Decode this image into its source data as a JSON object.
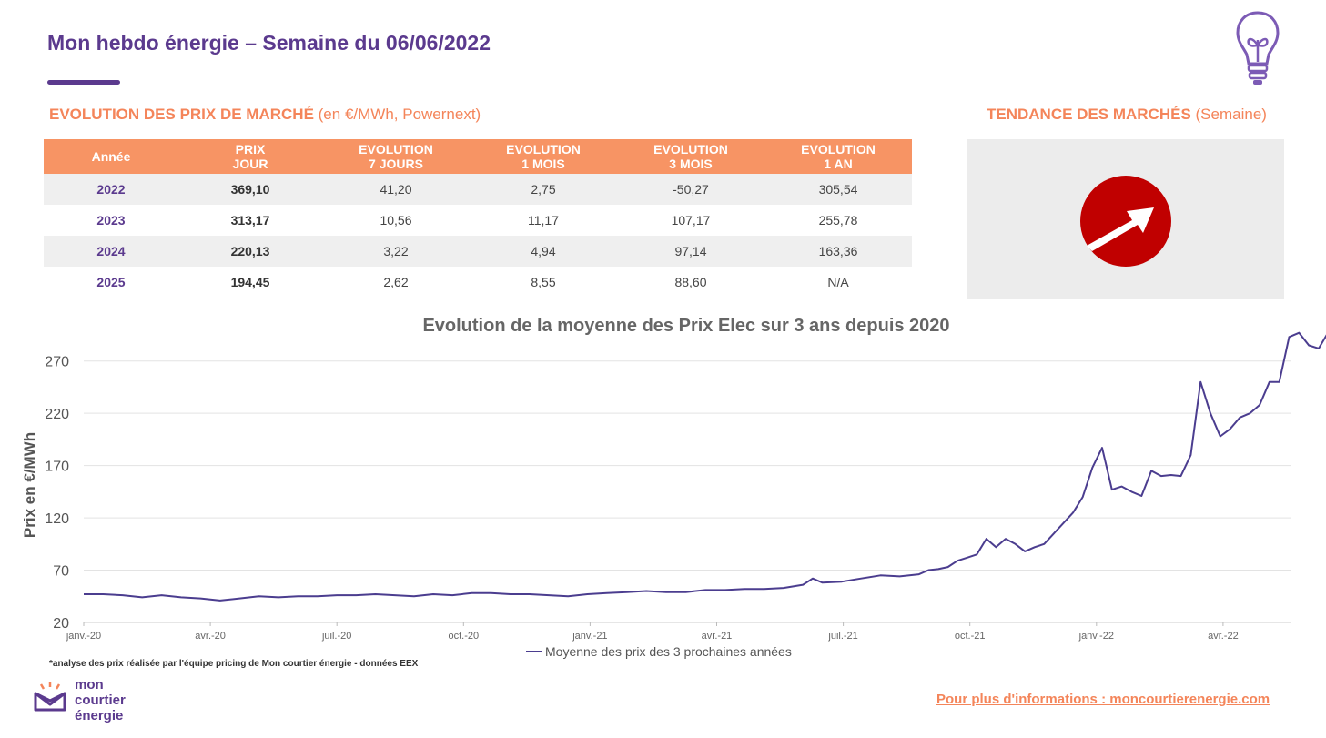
{
  "header": {
    "title": "Mon hebdo énergie – Semaine du 06/06/2022"
  },
  "market_prices": {
    "section_title": "EVOLUTION DES PRIX DE MARCHÉ",
    "section_subtitle": " (en €/MWh, Powernext)",
    "columns": [
      "Année",
      "PRIX\nJOUR",
      "EVOLUTION\n7 JOURS",
      "EVOLUTION\n1 MOIS",
      "EVOLUTION\n3 MOIS",
      "EVOLUTION\n1 AN"
    ],
    "rows": [
      [
        "2022",
        "369,10",
        "41,20",
        "2,75",
        "-50,27",
        "305,54"
      ],
      [
        "2023",
        "313,17",
        "10,56",
        "11,17",
        "107,17",
        "255,78"
      ],
      [
        "2024",
        "220,13",
        "3,22",
        "4,94",
        "97,14",
        "163,36"
      ],
      [
        "2025",
        "194,45",
        "2,62",
        "8,55",
        "88,60",
        "N/A"
      ]
    ]
  },
  "trend": {
    "section_title": "TENDANCE DES MARCHÉS",
    "section_subtitle": " (Semaine)",
    "direction_icon": "arrow-up-right-icon",
    "icon_color": "#c00000"
  },
  "colors": {
    "brand_purple": "#5b3a8e",
    "accent_orange": "#f4855a",
    "table_header": "#f79464",
    "series_line": "#4b3d8f"
  },
  "chart_data": {
    "type": "line",
    "title": "Evolution de la moyenne des Prix Elec sur 3 ans depuis 2020",
    "ylabel": "Prix en €/MWh",
    "xlabel": "",
    "ylim": [
      20,
      295
    ],
    "yticks": [
      20,
      70,
      120,
      170,
      220,
      270
    ],
    "grid": true,
    "legend": "bottom",
    "tick_labels": [
      "janv.-20",
      "avr.-20",
      "juil.-20",
      "oct.-20",
      "janv.-21",
      "avr.-21",
      "juil.-21",
      "oct.-21",
      "janv.-22",
      "avr.-22"
    ],
    "tick_dates": [
      "2020-01-01",
      "2020-04-01",
      "2020-07-01",
      "2020-10-01",
      "2021-01-01",
      "2021-04-01",
      "2021-07-01",
      "2021-10-01",
      "2022-01-01",
      "2022-04-01"
    ],
    "series": [
      {
        "name": "Moyenne des prix des 3 prochaines années",
        "color": "#4b3d8f",
        "points": [
          [
            "2020-01-01",
            47
          ],
          [
            "2020-01-15",
            47
          ],
          [
            "2020-01-29",
            46
          ],
          [
            "2020-02-12",
            44
          ],
          [
            "2020-02-26",
            46
          ],
          [
            "2020-03-11",
            44
          ],
          [
            "2020-03-25",
            43
          ],
          [
            "2020-04-08",
            41
          ],
          [
            "2020-04-22",
            43
          ],
          [
            "2020-05-06",
            45
          ],
          [
            "2020-05-20",
            44
          ],
          [
            "2020-06-03",
            45
          ],
          [
            "2020-06-17",
            45
          ],
          [
            "2020-07-01",
            46
          ],
          [
            "2020-07-15",
            46
          ],
          [
            "2020-07-29",
            47
          ],
          [
            "2020-08-12",
            46
          ],
          [
            "2020-08-26",
            45
          ],
          [
            "2020-09-09",
            47
          ],
          [
            "2020-09-23",
            46
          ],
          [
            "2020-10-07",
            48
          ],
          [
            "2020-10-21",
            48
          ],
          [
            "2020-11-04",
            47
          ],
          [
            "2020-11-18",
            47
          ],
          [
            "2020-12-02",
            46
          ],
          [
            "2020-12-16",
            45
          ],
          [
            "2020-12-30",
            47
          ],
          [
            "2021-01-13",
            48
          ],
          [
            "2021-01-27",
            49
          ],
          [
            "2021-02-10",
            50
          ],
          [
            "2021-02-24",
            49
          ],
          [
            "2021-03-10",
            49
          ],
          [
            "2021-03-24",
            51
          ],
          [
            "2021-04-07",
            51
          ],
          [
            "2021-04-21",
            52
          ],
          [
            "2021-05-05",
            52
          ],
          [
            "2021-05-19",
            53
          ],
          [
            "2021-06-02",
            56
          ],
          [
            "2021-06-09",
            62
          ],
          [
            "2021-06-16",
            58
          ],
          [
            "2021-06-30",
            59
          ],
          [
            "2021-07-14",
            62
          ],
          [
            "2021-07-28",
            65
          ],
          [
            "2021-08-11",
            64
          ],
          [
            "2021-08-25",
            66
          ],
          [
            "2021-09-01",
            70
          ],
          [
            "2021-09-08",
            71
          ],
          [
            "2021-09-15",
            73
          ],
          [
            "2021-09-22",
            79
          ],
          [
            "2021-09-29",
            82
          ],
          [
            "2021-10-06",
            85
          ],
          [
            "2021-10-13",
            100
          ],
          [
            "2021-10-20",
            92
          ],
          [
            "2021-10-27",
            100
          ],
          [
            "2021-11-03",
            95
          ],
          [
            "2021-11-10",
            88
          ],
          [
            "2021-11-17",
            92
          ],
          [
            "2021-11-24",
            95
          ],
          [
            "2021-12-01",
            105
          ],
          [
            "2021-12-08",
            115
          ],
          [
            "2021-12-15",
            125
          ],
          [
            "2021-12-22",
            140
          ],
          [
            "2021-12-29",
            168
          ],
          [
            "2022-01-05",
            187
          ],
          [
            "2022-01-12",
            147
          ],
          [
            "2022-01-19",
            150
          ],
          [
            "2022-01-26",
            145
          ],
          [
            "2022-02-02",
            141
          ],
          [
            "2022-02-09",
            165
          ],
          [
            "2022-02-16",
            160
          ],
          [
            "2022-02-23",
            161
          ],
          [
            "2022-03-02",
            160
          ],
          [
            "2022-03-09",
            180
          ],
          [
            "2022-03-16",
            250
          ],
          [
            "2022-03-23",
            220
          ],
          [
            "2022-03-30",
            198
          ],
          [
            "2022-04-06",
            205
          ],
          [
            "2022-04-13",
            216
          ],
          [
            "2022-04-20",
            220
          ],
          [
            "2022-04-27",
            228
          ],
          [
            "2022-05-04",
            250
          ],
          [
            "2022-05-11",
            250
          ],
          [
            "2022-05-18",
            293
          ],
          [
            "2022-05-25",
            297
          ],
          [
            "2022-06-01",
            285
          ],
          [
            "2022-06-08",
            282
          ],
          [
            "2022-06-15",
            298
          ]
        ]
      }
    ]
  },
  "footer": {
    "footnote": "*analyse des prix réalisée par l'équipe pricing de Mon courtier énergie -  données EEX",
    "logo_lines": [
      "mon",
      "courtier",
      "énergie"
    ],
    "info_link": "Pour plus d'informations : moncourtierenergie.com"
  }
}
